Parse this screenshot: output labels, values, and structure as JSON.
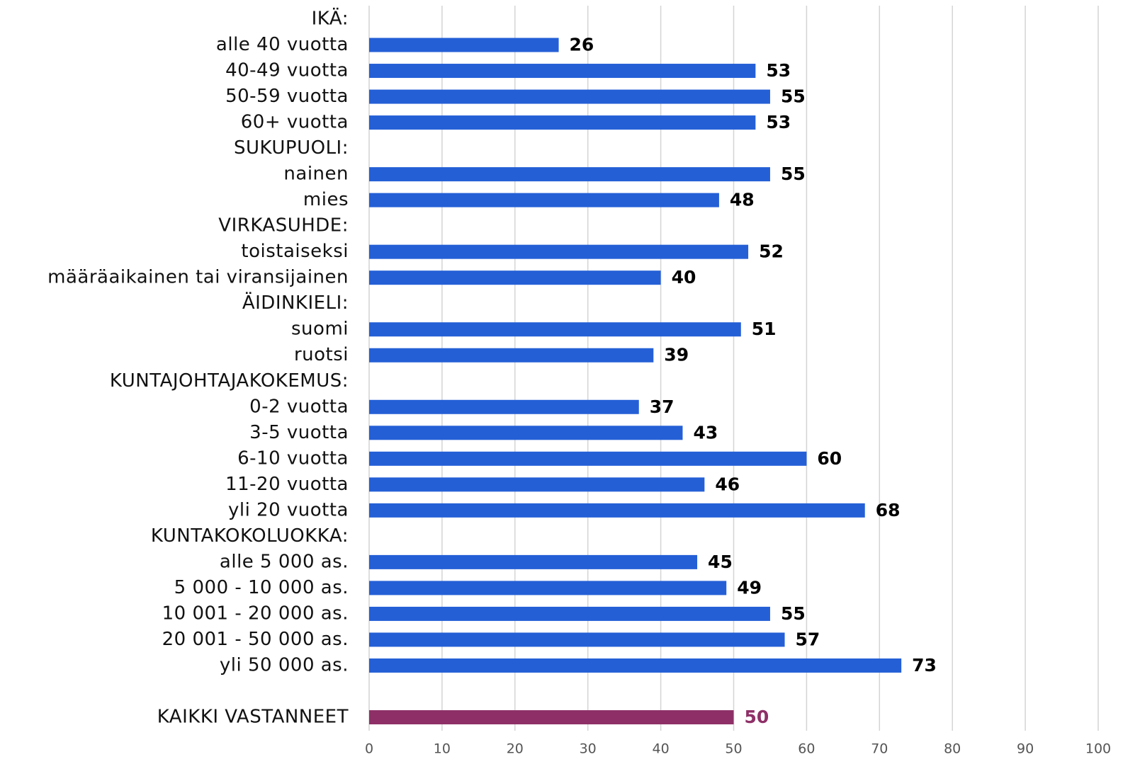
{
  "chart_data": {
    "type": "hbar",
    "categories": [
      "IKÄ:",
      "alle 40 vuotta",
      "40-49 vuotta",
      "50-59 vuotta",
      "60+ vuotta",
      "SUKUPUOLI:",
      "nainen",
      "mies",
      "VIRKASUHDE:",
      "toistaiseksi",
      "määräaikainen tai viransijainen",
      "ÄIDINKIELI:",
      "suomi",
      "ruotsi",
      "KUNTAJOHTAJAKOKEMUS:",
      "0-2 vuotta",
      "3-5 vuotta",
      "6-10 vuotta",
      "11-20 vuotta",
      "yli 20 vuotta",
      "KUNTAKOKOLUOKKA:",
      "alle 5 000 as.",
      "5 000 - 10 000 as.",
      "10 001 - 20 000 as.",
      "20 001 - 50 000 as.",
      "yli 50 000 as.",
      null,
      "KAIKKI VASTANNEET"
    ],
    "values": [
      null,
      26,
      53,
      55,
      53,
      null,
      55,
      48,
      null,
      52,
      40,
      null,
      51,
      39,
      null,
      37,
      43,
      60,
      46,
      68,
      null,
      45,
      49,
      55,
      57,
      73,
      null,
      50
    ],
    "colors": [
      null,
      "#245fd6",
      "#245fd6",
      "#245fd6",
      "#245fd6",
      null,
      "#245fd6",
      "#245fd6",
      null,
      "#245fd6",
      "#245fd6",
      null,
      "#245fd6",
      "#245fd6",
      null,
      "#245fd6",
      "#245fd6",
      "#245fd6",
      "#245fd6",
      "#245fd6",
      null,
      "#245fd6",
      "#245fd6",
      "#245fd6",
      "#245fd6",
      "#245fd6",
      null,
      "#8e3067"
    ],
    "xlim": [
      0,
      100
    ],
    "xticks": [
      0,
      10,
      20,
      30,
      40,
      50,
      60,
      70,
      80,
      90,
      100
    ],
    "grid": true
  }
}
